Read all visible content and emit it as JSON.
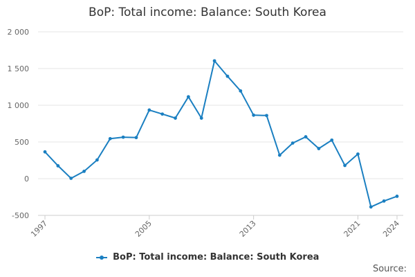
{
  "chart_data": {
    "type": "line",
    "title": "BoP: Total income: Balance: South Korea",
    "xlabel": "",
    "ylabel": "",
    "x": [
      1997,
      1998,
      1999,
      2000,
      2001,
      2002,
      2003,
      2004,
      2005,
      2006,
      2007,
      2008,
      2009,
      2010,
      2011,
      2012,
      2013,
      2014,
      2015,
      2016,
      2017,
      2018,
      2019,
      2020,
      2021,
      2022,
      2023,
      2024
    ],
    "series": [
      {
        "name": "BoP: Total income: Balance: South Korea",
        "values": [
          365,
          175,
          5,
          100,
          255,
          545,
          565,
          560,
          935,
          880,
          825,
          1115,
          825,
          1605,
          1395,
          1195,
          865,
          860,
          320,
          485,
          570,
          410,
          525,
          180,
          335,
          -385,
          -305,
          -240
        ]
      }
    ],
    "xticks": [
      "1997",
      "2005",
      "2013",
      "2021",
      "2024"
    ],
    "yticks": [
      "2 000",
      "1 500",
      "1 000",
      "500",
      "0",
      "-500"
    ],
    "ytick_values": [
      2000,
      1500,
      1000,
      500,
      0,
      -500
    ],
    "ylim": [
      -500,
      2000
    ],
    "xlim": [
      1997,
      2024
    ],
    "grid": true,
    "legend_position": "bottom",
    "line_color": "#1a7fc1",
    "source_label": "Source:"
  }
}
